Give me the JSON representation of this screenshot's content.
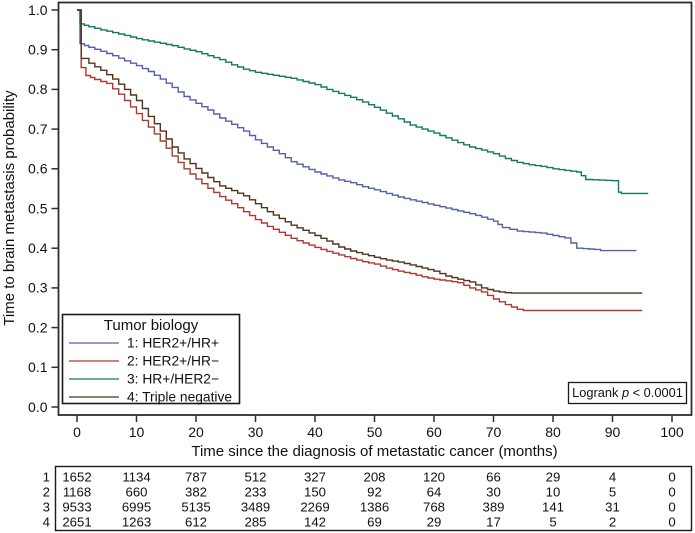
{
  "figure": {
    "background": "#ffffff",
    "frame_color": "#2e2e2e",
    "text_color": "#111111"
  },
  "chart_data": {
    "type": "line",
    "subtype": "kaplan-meier-step-curves",
    "title": "",
    "xlabel": "Time since the diagnosis of metastatic cancer (months)",
    "ylabel": "Time to brain metastasis probability",
    "xlim": [
      0,
      100
    ],
    "ylim": [
      0.0,
      1.0
    ],
    "xticks": [
      0,
      10,
      20,
      30,
      40,
      50,
      60,
      70,
      80,
      90,
      100
    ],
    "ytick_labels": [
      "0.0",
      "0.1",
      "0.2",
      "0.3",
      "0.4",
      "0.5",
      "0.6",
      "0.7",
      "0.8",
      "0.9",
      "1.0"
    ],
    "grid": false,
    "legend": {
      "title": "Tumor biology",
      "position": "bottom-left"
    },
    "annotation": {
      "prefix": "Logrank ",
      "italic": "p",
      "suffix": " < 0.0001"
    },
    "series": [
      {
        "name": "1: HER2+/HR+",
        "color": "#5560a5",
        "points": [
          [
            0,
            1.0
          ],
          [
            0.5,
            0.915
          ],
          [
            2,
            0.906
          ],
          [
            4,
            0.896
          ],
          [
            6,
            0.885
          ],
          [
            8,
            0.872
          ],
          [
            10,
            0.86
          ],
          [
            12,
            0.845
          ],
          [
            14,
            0.826
          ],
          [
            16,
            0.805
          ],
          [
            18,
            0.782
          ],
          [
            20,
            0.765
          ],
          [
            22,
            0.748
          ],
          [
            24,
            0.728
          ],
          [
            26,
            0.712
          ],
          [
            28,
            0.695
          ],
          [
            30,
            0.673
          ],
          [
            32,
            0.655
          ],
          [
            34,
            0.638
          ],
          [
            36,
            0.618
          ],
          [
            38,
            0.605
          ],
          [
            40,
            0.592
          ],
          [
            42,
            0.582
          ],
          [
            44,
            0.572
          ],
          [
            46,
            0.565
          ],
          [
            48,
            0.555
          ],
          [
            50,
            0.547
          ],
          [
            52,
            0.538
          ],
          [
            54,
            0.529
          ],
          [
            56,
            0.522
          ],
          [
            58,
            0.515
          ],
          [
            60,
            0.508
          ],
          [
            62,
            0.501
          ],
          [
            64,
            0.494
          ],
          [
            66,
            0.487
          ],
          [
            68,
            0.478
          ],
          [
            70,
            0.468
          ],
          [
            71.5,
            0.452
          ],
          [
            74,
            0.443
          ],
          [
            78,
            0.438
          ],
          [
            82,
            0.426
          ],
          [
            84,
            0.4
          ],
          [
            87,
            0.397
          ],
          [
            88,
            0.394
          ],
          [
            94,
            0.394
          ]
        ]
      },
      {
        "name": "2: HER2+/HR−",
        "color": "#ad3a32",
        "points": [
          [
            0,
            1.0
          ],
          [
            0.7,
            0.855
          ],
          [
            1.5,
            0.835
          ],
          [
            3,
            0.825
          ],
          [
            5,
            0.815
          ],
          [
            7,
            0.788
          ],
          [
            9,
            0.756
          ],
          [
            11,
            0.722
          ],
          [
            13,
            0.688
          ],
          [
            15,
            0.652
          ],
          [
            16,
            0.632
          ],
          [
            18,
            0.6
          ],
          [
            20,
            0.574
          ],
          [
            22,
            0.551
          ],
          [
            24,
            0.53
          ],
          [
            26,
            0.512
          ],
          [
            28,
            0.492
          ],
          [
            30,
            0.472
          ],
          [
            32,
            0.455
          ],
          [
            34,
            0.44
          ],
          [
            36,
            0.425
          ],
          [
            38,
            0.413
          ],
          [
            40,
            0.402
          ],
          [
            42,
            0.392
          ],
          [
            44,
            0.383
          ],
          [
            46,
            0.374
          ],
          [
            48,
            0.366
          ],
          [
            50,
            0.36
          ],
          [
            52,
            0.35
          ],
          [
            54,
            0.342
          ],
          [
            56,
            0.336
          ],
          [
            58,
            0.328
          ],
          [
            60,
            0.322
          ],
          [
            62,
            0.318
          ],
          [
            64,
            0.313
          ],
          [
            66,
            0.3
          ],
          [
            68,
            0.29
          ],
          [
            70,
            0.272
          ],
          [
            72,
            0.258
          ],
          [
            74,
            0.246
          ],
          [
            75,
            0.243
          ],
          [
            95,
            0.243
          ]
        ]
      },
      {
        "name": "3: HR+/HER2−",
        "color": "#137863",
        "points": [
          [
            0,
            1.0
          ],
          [
            0.5,
            0.965
          ],
          [
            2,
            0.958
          ],
          [
            4,
            0.95
          ],
          [
            6,
            0.943
          ],
          [
            8,
            0.936
          ],
          [
            10,
            0.928
          ],
          [
            12,
            0.922
          ],
          [
            14,
            0.916
          ],
          [
            16,
            0.91
          ],
          [
            18,
            0.902
          ],
          [
            20,
            0.895
          ],
          [
            22,
            0.885
          ],
          [
            24,
            0.875
          ],
          [
            26,
            0.862
          ],
          [
            28,
            0.851
          ],
          [
            30,
            0.843
          ],
          [
            32,
            0.838
          ],
          [
            34,
            0.833
          ],
          [
            36,
            0.828
          ],
          [
            38,
            0.82
          ],
          [
            40,
            0.812
          ],
          [
            42,
            0.8
          ],
          [
            44,
            0.79
          ],
          [
            46,
            0.78
          ],
          [
            48,
            0.768
          ],
          [
            50,
            0.755
          ],
          [
            52,
            0.74
          ],
          [
            54,
            0.726
          ],
          [
            56,
            0.71
          ],
          [
            58,
            0.7
          ],
          [
            60,
            0.69
          ],
          [
            62,
            0.678
          ],
          [
            64,
            0.666
          ],
          [
            66,
            0.655
          ],
          [
            68,
            0.647
          ],
          [
            70,
            0.638
          ],
          [
            72,
            0.626
          ],
          [
            74,
            0.616
          ],
          [
            76,
            0.61
          ],
          [
            78,
            0.606
          ],
          [
            80,
            0.6
          ],
          [
            82,
            0.596
          ],
          [
            84,
            0.592
          ],
          [
            85.5,
            0.573
          ],
          [
            90,
            0.57
          ],
          [
            91,
            0.541
          ],
          [
            91.5,
            0.538
          ],
          [
            96,
            0.538
          ]
        ]
      },
      {
        "name": "4: Triple negative",
        "color": "#503418",
        "points": [
          [
            0,
            1.0
          ],
          [
            0.7,
            0.878
          ],
          [
            2,
            0.866
          ],
          [
            4,
            0.848
          ],
          [
            6,
            0.826
          ],
          [
            8,
            0.8
          ],
          [
            10,
            0.772
          ],
          [
            12,
            0.732
          ],
          [
            14,
            0.695
          ],
          [
            16,
            0.655
          ],
          [
            18,
            0.625
          ],
          [
            20,
            0.601
          ],
          [
            22,
            0.578
          ],
          [
            24,
            0.557
          ],
          [
            26,
            0.545
          ],
          [
            28,
            0.532
          ],
          [
            30,
            0.512
          ],
          [
            32,
            0.492
          ],
          [
            34,
            0.475
          ],
          [
            36,
            0.458
          ],
          [
            38,
            0.445
          ],
          [
            40,
            0.432
          ],
          [
            42,
            0.418
          ],
          [
            44,
            0.403
          ],
          [
            46,
            0.393
          ],
          [
            48,
            0.385
          ],
          [
            50,
            0.377
          ],
          [
            52,
            0.37
          ],
          [
            54,
            0.365
          ],
          [
            56,
            0.358
          ],
          [
            58,
            0.35
          ],
          [
            60,
            0.342
          ],
          [
            62,
            0.33
          ],
          [
            64,
            0.322
          ],
          [
            66,
            0.315
          ],
          [
            68,
            0.3
          ],
          [
            70,
            0.292
          ],
          [
            72,
            0.288
          ],
          [
            73,
            0.287
          ],
          [
            95,
            0.287
          ]
        ]
      }
    ],
    "risk_table": {
      "row_labels": [
        "1",
        "2",
        "3",
        "4"
      ],
      "times": [
        0,
        10,
        20,
        30,
        40,
        50,
        60,
        70,
        80,
        90,
        100
      ],
      "rows": [
        [
          1652,
          1134,
          787,
          512,
          327,
          208,
          120,
          66,
          29,
          4,
          0
        ],
        [
          1168,
          660,
          382,
          233,
          150,
          92,
          64,
          30,
          10,
          5,
          0
        ],
        [
          9533,
          6995,
          5135,
          3489,
          2269,
          1386,
          768,
          389,
          141,
          31,
          0
        ],
        [
          2651,
          1263,
          612,
          285,
          142,
          69,
          29,
          17,
          5,
          2,
          0
        ]
      ]
    }
  }
}
